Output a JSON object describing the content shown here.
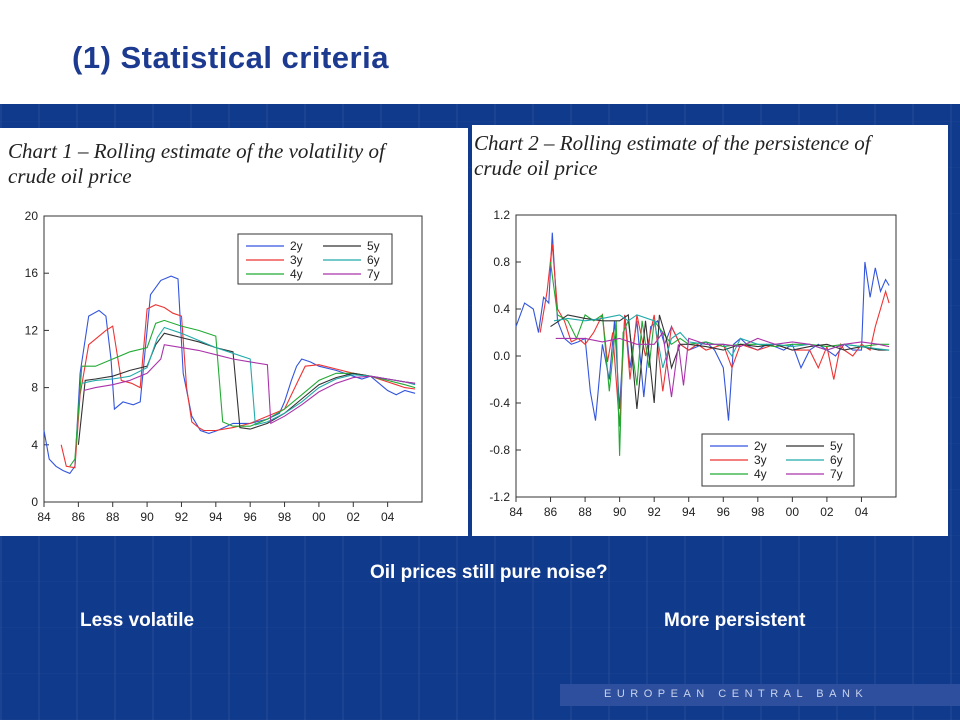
{
  "slide": {
    "title": "(1) Statistical criteria",
    "question": "Oil prices still pure noise?",
    "left_caption": "Less volatile",
    "right_caption": "More persistent",
    "footer": "EUROPEAN CENTRAL BANK"
  },
  "colors": {
    "band": "#103a8c",
    "title": "#1c3a8f"
  },
  "chart_data": [
    {
      "type": "line",
      "title_lines": [
        "Chart 1 – Rolling estimate of the volatility of",
        "crude oil price"
      ],
      "xlabel": "",
      "ylabel": "",
      "xlim": [
        1984,
        2006
      ],
      "ylim": [
        0,
        20
      ],
      "x_ticks": [
        1984,
        1986,
        1988,
        1990,
        1992,
        1994,
        1996,
        1998,
        2000,
        2002,
        2004
      ],
      "x_tick_labels": [
        "84",
        "86",
        "88",
        "90",
        "92",
        "94",
        "96",
        "98",
        "00",
        "02",
        "04"
      ],
      "y_ticks": [
        0,
        4,
        8,
        12,
        16,
        20
      ],
      "y_tick_labels": [
        "0",
        "4",
        "8",
        "12",
        "16",
        "20"
      ],
      "legend_position": "top-right",
      "series": [
        {
          "name": "2y",
          "color": "#3355dd",
          "x": [
            1984,
            1984.3,
            1984.7,
            1985.1,
            1985.5,
            1985.8,
            1986.1,
            1986.6,
            1987.2,
            1987.6,
            1987.9,
            1988.1,
            1988.6,
            1989.2,
            1989.6,
            1990.2,
            1990.8,
            1991.4,
            1991.8,
            1992.1,
            1992.6,
            1993.1,
            1993.6,
            1994.1,
            1995,
            1996,
            1997,
            1997.7,
            1998,
            1998.4,
            1998.7,
            1999,
            1999.5,
            2000,
            2001,
            2002,
            2002.5,
            2003,
            2003.5,
            2004,
            2004.5,
            2005,
            2005.6
          ],
          "y": [
            5,
            3,
            2.5,
            2.2,
            2,
            2.5,
            9,
            13,
            13.4,
            13,
            10,
            6.5,
            7,
            6.8,
            7,
            14.5,
            15.5,
            15.8,
            15.6,
            9,
            6,
            5,
            4.8,
            5,
            5.5,
            5.5,
            5.8,
            6.2,
            7,
            8.5,
            9.5,
            10,
            9.8,
            9.5,
            9.2,
            8.8,
            8.6,
            8.8,
            8.3,
            7.8,
            7.5,
            7.8,
            7.6
          ]
        },
        {
          "name": "3y",
          "color": "#ee3333",
          "x": [
            1985,
            1985.3,
            1985.8,
            1986.1,
            1986.6,
            1987.1,
            1987.6,
            1988,
            1988.5,
            1989.1,
            1989.6,
            1990,
            1990.5,
            1991,
            1991.5,
            1992,
            1992.3,
            1992.6,
            1993,
            1993.3,
            1993.6,
            1994,
            1995,
            1996,
            1997,
            1998,
            1998.8,
            1999.2,
            2000,
            2001,
            2002,
            2003,
            2004,
            2004.5,
            2005,
            2005.6
          ],
          "y": [
            4,
            2.5,
            2.4,
            7.5,
            11,
            11.5,
            12,
            12.3,
            8.5,
            8.3,
            8,
            13.5,
            13.8,
            13.6,
            13.2,
            13,
            8,
            5.6,
            5.2,
            5,
            5,
            5,
            5.2,
            5.5,
            6,
            6.5,
            8.5,
            9.5,
            9.6,
            9.3,
            9,
            8.8,
            8.4,
            8.2,
            8,
            7.9
          ]
        },
        {
          "name": "4y",
          "color": "#22aa33",
          "x": [
            1985.5,
            1985.8,
            1986.2,
            1987,
            1988,
            1989,
            1990,
            1990.5,
            1991,
            1992,
            1993,
            1994,
            1994.4,
            1995,
            1996,
            1997,
            1998,
            1999,
            2000,
            2001,
            2002,
            2003,
            2004,
            2005,
            2005.6
          ],
          "y": [
            2.5,
            3,
            9.5,
            9.5,
            10,
            10.5,
            10.8,
            12.5,
            12.7,
            12.3,
            12,
            11.6,
            5.6,
            5.3,
            5.3,
            5.8,
            6.5,
            7.5,
            8.5,
            9,
            9,
            8.8,
            8.5,
            8.2,
            8
          ]
        },
        {
          "name": "5y",
          "color": "#333333",
          "x": [
            1986,
            1986.4,
            1987,
            1988,
            1989,
            1990,
            1990.5,
            1991,
            1992,
            1993,
            1994,
            1995,
            1995.4,
            1996,
            1997,
            1998,
            1999,
            2000,
            2001,
            2002,
            2003,
            2004,
            2005,
            2005.6
          ],
          "y": [
            4,
            8.5,
            8.6,
            8.8,
            9.2,
            9.5,
            11,
            11.8,
            11.5,
            11.2,
            10.8,
            10.5,
            5.2,
            5.1,
            5.5,
            6.2,
            7.2,
            8.2,
            8.7,
            9,
            8.8,
            8.6,
            8.4,
            8.3
          ]
        },
        {
          "name": "6y",
          "color": "#22aaaa",
          "x": [
            1986.2,
            1987,
            1988,
            1989,
            1990,
            1990.6,
            1991,
            1992,
            1993,
            1994,
            1995,
            1996,
            1996.3,
            1997,
            1998,
            1999,
            2000,
            2001,
            2002,
            2003,
            2004,
            2005,
            2005.6
          ],
          "y": [
            8.3,
            8.5,
            8.6,
            8.8,
            9.4,
            11.5,
            12.2,
            11.8,
            11.3,
            10.8,
            10.4,
            10,
            5.4,
            5.6,
            6.2,
            7,
            8,
            8.6,
            8.9,
            8.8,
            8.6,
            8.4,
            8.2
          ]
        },
        {
          "name": "7y",
          "color": "#aa33aa",
          "x": [
            1986.3,
            1987,
            1988,
            1989,
            1990,
            1990.8,
            1991,
            1992,
            1993,
            1994,
            1995,
            1996,
            1997,
            1997.2,
            1998,
            1999,
            2000,
            2001,
            2002,
            2003,
            2004,
            2005,
            2005.6
          ],
          "y": [
            7.8,
            8,
            8.2,
            8.5,
            9,
            10,
            11,
            10.8,
            10.6,
            10.3,
            10,
            9.8,
            9.6,
            5.5,
            6,
            6.8,
            7.7,
            8.3,
            8.7,
            8.8,
            8.6,
            8.4,
            8.3
          ]
        }
      ]
    },
    {
      "type": "line",
      "title_lines": [
        "Chart 2 – Rolling estimate of the persistence of",
        "crude oil price"
      ],
      "xlabel": "",
      "ylabel": "",
      "xlim": [
        1984,
        2006
      ],
      "ylim": [
        -1.2,
        1.2
      ],
      "x_ticks": [
        1984,
        1986,
        1988,
        1990,
        1992,
        1994,
        1996,
        1998,
        2000,
        2002,
        2004
      ],
      "x_tick_labels": [
        "84",
        "86",
        "88",
        "90",
        "92",
        "94",
        "96",
        "98",
        "00",
        "02",
        "04"
      ],
      "y_ticks": [
        1.2,
        0.8,
        0.4,
        0.0,
        -0.4,
        -0.8,
        -1.2
      ],
      "y_tick_labels": [
        "1.2",
        "0.8",
        "0.4",
        "0.0",
        "-0.4",
        "-0.8",
        "-1.2"
      ],
      "legend_position": "bottom-left",
      "series": [
        {
          "name": "2y",
          "color": "#3355dd",
          "x": [
            1984,
            1984.5,
            1985,
            1985.3,
            1985.6,
            1985.9,
            1986.1,
            1986.4,
            1986.8,
            1987.2,
            1987.6,
            1988,
            1988.3,
            1988.6,
            1989,
            1989.4,
            1989.7,
            1990,
            1990.3,
            1990.6,
            1991,
            1991.4,
            1991.8,
            1992.2,
            1992.6,
            1993,
            1993.5,
            1994,
            1994.5,
            1995,
            1995.5,
            1996,
            1996.3,
            1996.6,
            1997,
            1997.5,
            1998,
            1998.5,
            1999,
            1999.5,
            2000,
            2000.5,
            2001,
            2001.5,
            2002,
            2002.5,
            2003,
            2003.5,
            2004,
            2004.2,
            2004.5,
            2004.8,
            2005.1,
            2005.4,
            2005.6
          ],
          "y": [
            0.25,
            0.45,
            0.4,
            0.2,
            0.5,
            0.45,
            1.05,
            0.3,
            0.15,
            0.1,
            0.12,
            0.15,
            -0.3,
            -0.55,
            0.1,
            -0.2,
            0.3,
            -0.45,
            0.35,
            -0.1,
            0.3,
            -0.35,
            0.25,
            0.3,
            0.1,
            0.25,
            0.1,
            0.05,
            0.08,
            0.12,
            0.05,
            -0.1,
            -0.55,
            0.1,
            0.15,
            0.08,
            0.05,
            0.1,
            0.08,
            0.05,
            0.1,
            -0.1,
            0.05,
            0.1,
            0.05,
            0.0,
            0.1,
            0.05,
            0.05,
            0.8,
            0.5,
            0.75,
            0.55,
            0.65,
            0.6
          ]
        },
        {
          "name": "3y",
          "color": "#ee3333",
          "x": [
            1985.4,
            1985.8,
            1986.1,
            1986.4,
            1986.8,
            1987.2,
            1987.6,
            1988,
            1988.5,
            1989,
            1989.3,
            1989.6,
            1990,
            1990.3,
            1990.6,
            1991,
            1991.5,
            1992,
            1992.5,
            1993,
            1993.5,
            1994,
            1994.5,
            1995,
            1996,
            1996.5,
            1997,
            1998,
            1999,
            2000,
            2001,
            2001.5,
            2002,
            2002.4,
            2002.8,
            2003,
            2003.5,
            2004,
            2004.5,
            2004.8,
            2005.1,
            2005.4,
            2005.6
          ],
          "y": [
            0.2,
            0.55,
            0.95,
            0.4,
            0.3,
            0.12,
            0.15,
            0.1,
            0.2,
            0.35,
            -0.05,
            0.2,
            -0.6,
            0.35,
            -0.2,
            0.35,
            0.0,
            0.35,
            -0.3,
            0.25,
            0.1,
            0.05,
            0.1,
            0.05,
            0.1,
            -0.1,
            0.1,
            0.05,
            0.1,
            0.05,
            0.05,
            -0.1,
            0.08,
            -0.2,
            0.1,
            0.05,
            0.0,
            0.1,
            0.05,
            0.25,
            0.4,
            0.55,
            0.45
          ]
        },
        {
          "name": "4y",
          "color": "#22aa33",
          "x": [
            1986,
            1986.4,
            1987,
            1987.5,
            1988,
            1988.5,
            1989,
            1989.4,
            1989.8,
            1990,
            1990.2,
            1990.5,
            1991,
            1991.3,
            1991.7,
            1992,
            1992.5,
            1993,
            1993.5,
            1994,
            1995,
            1996,
            1997,
            1998,
            1999,
            2000,
            2001,
            2002,
            2003,
            2004,
            2005,
            2005.6
          ],
          "y": [
            0.8,
            0.35,
            0.3,
            0.15,
            0.35,
            0.3,
            0.35,
            -0.3,
            0.3,
            -0.85,
            0.2,
            0.3,
            -0.25,
            0.3,
            -0.1,
            0.3,
            0.2,
            0.1,
            0.15,
            0.1,
            0.12,
            0.08,
            0.1,
            0.1,
            0.08,
            0.1,
            0.1,
            0.08,
            0.1,
            0.08,
            0.1,
            0.1
          ]
        },
        {
          "name": "5y",
          "color": "#333333",
          "x": [
            1986,
            1986.5,
            1987,
            1988,
            1989,
            1989.5,
            1990,
            1990.5,
            1991,
            1991.5,
            1992,
            1992.3,
            1992.7,
            1993,
            1993.5,
            1994,
            1995,
            1996,
            1997,
            1998,
            1999,
            2000,
            2001,
            2002,
            2003,
            2004,
            2005,
            2005.6
          ],
          "y": [
            0.25,
            0.3,
            0.35,
            0.32,
            0.3,
            0.3,
            0.3,
            0.35,
            -0.45,
            0.3,
            -0.4,
            0.35,
            0.15,
            -0.1,
            0.1,
            0.1,
            0.08,
            0.05,
            0.1,
            0.08,
            0.1,
            0.05,
            0.08,
            0.1,
            0.05,
            0.08,
            0.05,
            0.05
          ]
        },
        {
          "name": "6y",
          "color": "#22aaaa",
          "x": [
            1986.2,
            1987,
            1988,
            1989,
            1990,
            1990.5,
            1991,
            1992,
            1992.5,
            1993,
            1993.5,
            1994,
            1995,
            1996,
            1996.5,
            1997,
            1998,
            1999,
            2000,
            2001,
            2002,
            2003,
            2004,
            2005,
            2005.6
          ],
          "y": [
            0.3,
            0.32,
            0.3,
            0.32,
            0.35,
            0.3,
            0.35,
            0.3,
            -0.1,
            0.15,
            0.2,
            0.12,
            0.1,
            0.1,
            0.0,
            0.15,
            0.1,
            0.1,
            0.08,
            0.1,
            0.05,
            0.1,
            0.08,
            0.06,
            0.05
          ]
        },
        {
          "name": "7y",
          "color": "#aa33aa",
          "x": [
            1986.3,
            1987,
            1988,
            1989,
            1990,
            1991,
            1992,
            1992.5,
            1993,
            1993.4,
            1993.7,
            1994,
            1995,
            1996,
            1997,
            1998,
            1999,
            2000,
            2001,
            2002,
            2003,
            2004,
            2005,
            2005.6
          ],
          "y": [
            0.15,
            0.15,
            0.15,
            0.12,
            0.15,
            0.1,
            0.1,
            0.2,
            -0.35,
            0.1,
            -0.25,
            0.15,
            0.1,
            0.1,
            0.08,
            0.15,
            0.1,
            0.12,
            0.1,
            0.05,
            0.1,
            0.12,
            0.1,
            0.08
          ]
        }
      ]
    }
  ]
}
